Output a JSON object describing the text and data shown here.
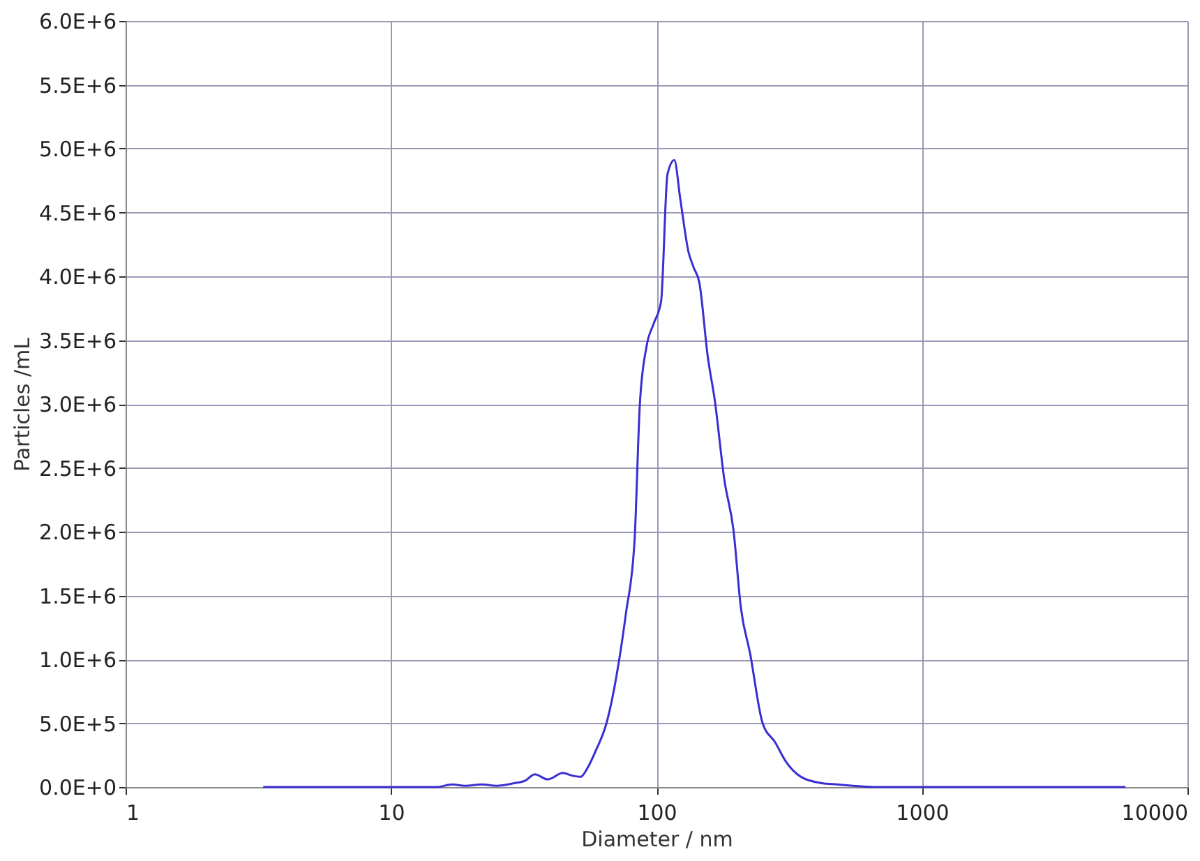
{
  "chart_data": {
    "type": "line",
    "xlabel": "Diameter / nm",
    "ylabel": "Particles /mL",
    "log": "x",
    "grid": true,
    "marker": "none",
    "line_style": "solid",
    "xlim": [
      1,
      10000
    ],
    "xticks": [
      1,
      10,
      100,
      1000,
      10000
    ],
    "ylim": [
      0,
      6000000
    ],
    "yticks": [
      {
        "value": 0,
        "label": "0.0E+0"
      },
      {
        "value": 500000,
        "label": "5.0E+5"
      },
      {
        "value": 1000000,
        "label": "1.0E+6"
      },
      {
        "value": 1500000,
        "label": "1.5E+6"
      },
      {
        "value": 2000000,
        "label": "2.0E+6"
      },
      {
        "value": 2500000,
        "label": "2.5E+6"
      },
      {
        "value": 3000000,
        "label": "3.0E+6"
      },
      {
        "value": 3500000,
        "label": "3.5E+6"
      },
      {
        "value": 4000000,
        "label": "4.0E+6"
      },
      {
        "value": 4500000,
        "label": "4.5E+6"
      },
      {
        "value": 5000000,
        "label": "5.0E+6"
      },
      {
        "value": 5500000,
        "label": "5.5E+6"
      },
      {
        "value": 6000000,
        "label": "6.0E+6"
      }
    ],
    "series": [
      {
        "color": "#3a2fd0",
        "x": [
          3.3,
          10,
          14.9,
          17,
          19,
          22,
          25,
          29,
          32,
          34.8,
          38.9,
          44.4,
          48,
          51.8,
          55,
          59.2,
          64.8,
          72,
          76.7,
          82.7,
          86.5,
          91.7,
          97.6,
          104,
          110,
          116.7,
          123,
          132,
          138,
          145,
          156,
          166,
          180,
          195,
          208,
          225,
          251,
          280,
          307,
          350,
          420,
          480,
          550,
          650,
          1000,
          5840
        ],
        "values": [
          0,
          0,
          0,
          20000,
          10000,
          20000,
          10000,
          30000,
          50000,
          100000,
          60000,
          110000,
          90000,
          80000,
          150000,
          290000,
          500000,
          970000,
          1360000,
          1940000,
          2990000,
          3450000,
          3630000,
          3800000,
          4800000,
          4910000,
          4600000,
          4190000,
          4070000,
          3950000,
          3370000,
          3020000,
          2410000,
          2010000,
          1400000,
          1050000,
          500000,
          350000,
          200000,
          80000,
          30000,
          20000,
          10000,
          0,
          0,
          0
        ]
      }
    ]
  }
}
